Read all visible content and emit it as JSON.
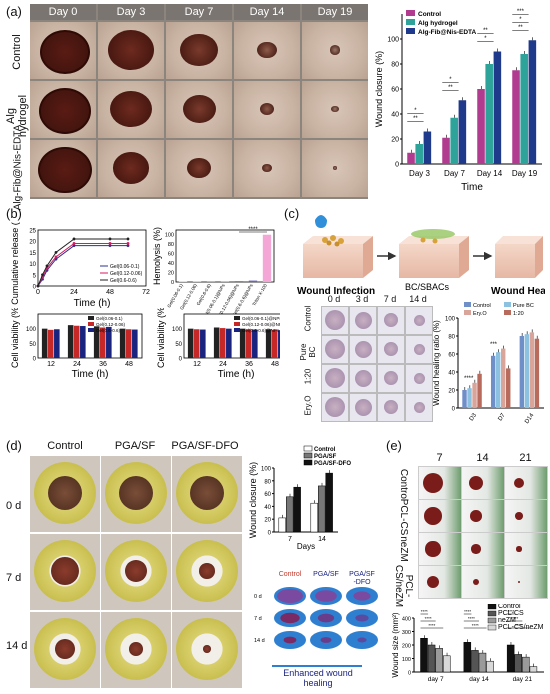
{
  "panel_a": {
    "label": "(a)",
    "days": [
      "Day 0",
      "Day 3",
      "Day 7",
      "Day 14",
      "Day 19"
    ],
    "rows": [
      "Control",
      "Alg hydrogel",
      "Alg-Fib@Nis-EDTA"
    ],
    "chart_data": {
      "type": "bar",
      "categories": [
        "Day 3",
        "Day 7",
        "Day 14",
        "Day 19"
      ],
      "series": [
        {
          "name": "Control",
          "values": [
            9,
            21,
            60,
            75
          ],
          "color": "#b13c8f"
        },
        {
          "name": "Alg hydrogel",
          "values": [
            16,
            37,
            80,
            88
          ],
          "color": "#2ea39a"
        },
        {
          "name": "Alg-Fib@Nis-EDTA",
          "values": [
            26,
            51,
            90,
            99
          ],
          "color": "#1f3a8a"
        }
      ],
      "xlabel": "Time",
      "ylabel": "Wound closure (%)",
      "ylim": [
        0,
        120
      ],
      "yticks": [
        "0",
        "20",
        "40",
        "60",
        "80",
        "100"
      ],
      "sig": [
        "**",
        "*",
        "**",
        "*",
        "*",
        "**",
        "**",
        "*",
        "***"
      ]
    }
  },
  "panel_b": {
    "label": "(b)",
    "release": {
      "chart_data": {
        "type": "line",
        "x": [
          0,
          3,
          6,
          12,
          24,
          48,
          60
        ],
        "series": [
          {
            "name": "Gel(0.06-0.1)",
            "values": [
              0,
              3,
              7,
              12,
              18,
              18,
              18
            ],
            "color": "#2e3192"
          },
          {
            "name": "Gel(0.12-0.06)",
            "values": [
              0,
              4,
              8,
              13,
              19,
              19,
              19
            ],
            "color": "#d81b60"
          },
          {
            "name": "Gel(0.6-0.6)",
            "values": [
              0,
              5,
              9,
              15,
              21,
              21,
              21
            ],
            "color": "#222222"
          }
        ],
        "xlabel": "Time (h)",
        "ylabel": "Cumulative release (%)",
        "xticks": [
          "0",
          "24",
          "48",
          "72"
        ],
        "yticks": [
          "0",
          "5",
          "10",
          "15",
          "20",
          "25"
        ]
      }
    },
    "hemolysis": {
      "chart_data": {
        "type": "bar",
        "categories": [
          "Gel(0.06-0.1)",
          "Gel(0.12-0.06)",
          "Gel(0.6-0.6)",
          "Gel(0.06-0.1)@NPs",
          "Gel(0.12-0.06)@NPs",
          "Gel(0.6-0.6)@NPs",
          "Triton X-100"
        ],
        "values": [
          1,
          1,
          1.5,
          1,
          2,
          3,
          100
        ],
        "ylabel": "Hemolysis (%)",
        "ylim": [
          0,
          110
        ],
        "yticks": [
          "0",
          "20",
          "40",
          "60",
          "80",
          "100"
        ],
        "sig": "****"
      }
    },
    "viability1": {
      "chart_data": {
        "type": "bar",
        "categories": [
          "12",
          "24",
          "36",
          "48"
        ],
        "series": [
          {
            "name": "Gel(0.06-0.1)",
            "values": [
              100,
              112,
              108,
              100
            ],
            "color": "#222222"
          },
          {
            "name": "Gel(0.12-0.06)",
            "values": [
              96,
              110,
              104,
              98
            ],
            "color": "#c62828"
          },
          {
            "name": "Gel(0.6-0.6)",
            "values": [
              98,
              109,
              106,
              97
            ],
            "color": "#1a237e"
          }
        ],
        "xlabel": "Time (h)",
        "ylabel": "Cell viability (%)",
        "yticks": [
          "0",
          "50",
          "100"
        ]
      }
    },
    "viability2": {
      "chart_data": {
        "type": "bar",
        "categories": [
          "12",
          "24",
          "36",
          "48"
        ],
        "series": [
          {
            "name": "Gel(0.06-0.1)@NPs",
            "values": [
              100,
              104,
              100,
              98
            ],
            "color": "#222222"
          },
          {
            "name": "Gel(0.12-0.06)@NPs",
            "values": [
              98,
              102,
              98,
              96
            ],
            "color": "#c62828"
          },
          {
            "name": "Gel(0.6-0.6)@NPs",
            "values": [
              97,
              100,
              97,
              95
            ],
            "color": "#1a237e"
          }
        ],
        "xlabel": "Time (h)",
        "ylabel": "Cell viability (%)",
        "yticks": [
          "0",
          "50",
          "100"
        ]
      }
    }
  },
  "panel_c": {
    "label": "(c)",
    "schematic": [
      "Wound Infection",
      "BC/SBACs",
      "Wound Healing"
    ],
    "days": [
      "0 d",
      "3 d",
      "7 d",
      "14 d"
    ],
    "rows": [
      "Control",
      "Pure BC",
      "1:20",
      "Ery.O"
    ],
    "chart_data": {
      "type": "bar",
      "categories": [
        "D3",
        "D7",
        "D14"
      ],
      "series": [
        {
          "name": "Control",
          "values": [
            20,
            58,
            80
          ],
          "color": "#6f8fc8"
        },
        {
          "name": "Pure BC",
          "values": [
            22,
            62,
            82
          ],
          "color": "#8cc1e0"
        },
        {
          "name": "Ery.O",
          "values": [
            28,
            66,
            84
          ],
          "color": "#d9a49a"
        },
        {
          "name": "1:20",
          "values": [
            38,
            44,
            77
          ],
          "color": "#b86b5c"
        }
      ],
      "ylabel": "Wound healing ratio (%)",
      "ylim": [
        0,
        100
      ],
      "yticks": [
        "0",
        "20",
        "40",
        "60",
        "80",
        "100"
      ],
      "sig": [
        "****",
        "***"
      ]
    }
  },
  "panel_d": {
    "label": "(d)",
    "columns": [
      "Control",
      "PGA/SF",
      "PGA/SF-DFO"
    ],
    "rows": [
      "0 d",
      "7 d",
      "14 d"
    ],
    "chart_data": {
      "type": "bar",
      "categories": [
        "7",
        "14"
      ],
      "series": [
        {
          "name": "Control",
          "values": [
            22,
            45
          ],
          "color": "#ffffff"
        },
        {
          "name": "PGA/SF",
          "values": [
            55,
            72
          ],
          "color": "#777777"
        },
        {
          "name": "PGA/SF-DFO",
          "values": [
            70,
            92
          ],
          "color": "#111111"
        }
      ],
      "xlabel": "Days",
      "ylabel": "Wound closure (%)",
      "ylim": [
        0,
        100
      ],
      "yticks": [
        "0",
        "20",
        "40",
        "60",
        "80",
        "100"
      ]
    },
    "schem_cols": [
      "Control",
      "PGA/SF",
      "PGA/SF\n-DFO"
    ],
    "schem_rows": [
      "0 d",
      "7 d",
      "14 d"
    ],
    "caption": "Enhanced wound healing"
  },
  "panel_e": {
    "label": "(e)",
    "days": [
      "7",
      "14",
      "21"
    ],
    "rows": [
      "Control",
      "PCL-CS",
      "neZM",
      "PCL-CS/neZM"
    ],
    "chart_data": {
      "type": "bar",
      "categories": [
        "day 7",
        "day 14",
        "day 21"
      ],
      "series": [
        {
          "name": "Control",
          "values": [
            250,
            220,
            200
          ],
          "color": "#111111"
        },
        {
          "name": "PCL-CS",
          "values": [
            200,
            160,
            130
          ],
          "color": "#555555"
        },
        {
          "name": "neZM",
          "values": [
            175,
            140,
            110
          ],
          "color": "#9a9a9a"
        },
        {
          "name": "PCL-CS/neZM",
          "values": [
            120,
            80,
            40
          ],
          "color": "#d8d8d8"
        }
      ],
      "ylabel": "Wound size (mm²)",
      "ylim": [
        0,
        400
      ],
      "yticks": [
        "0",
        "100",
        "200",
        "300",
        "400"
      ],
      "sig": "****"
    }
  }
}
